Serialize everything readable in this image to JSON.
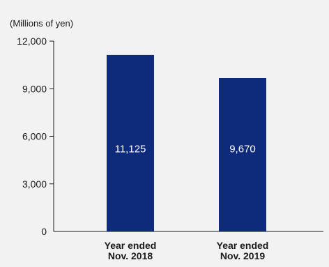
{
  "chart_data": {
    "type": "bar",
    "unit_label": "(Millions of yen)",
    "categories": [
      [
        "Year ended",
        "Nov. 2018"
      ],
      [
        "Year ended",
        "Nov. 2019"
      ]
    ],
    "values": [
      11125,
      9670
    ],
    "value_labels": [
      "11,125",
      "9,670"
    ],
    "yticks": [
      0,
      3000,
      6000,
      9000,
      12000
    ],
    "ytick_labels": [
      "0",
      "3,000",
      "6,000",
      "9,000",
      "12,000"
    ],
    "ylim": [
      0,
      12000
    ],
    "bar_color": "#0e2a7a",
    "background_color": "#f2f2f2",
    "grid": false,
    "legend": "none"
  }
}
